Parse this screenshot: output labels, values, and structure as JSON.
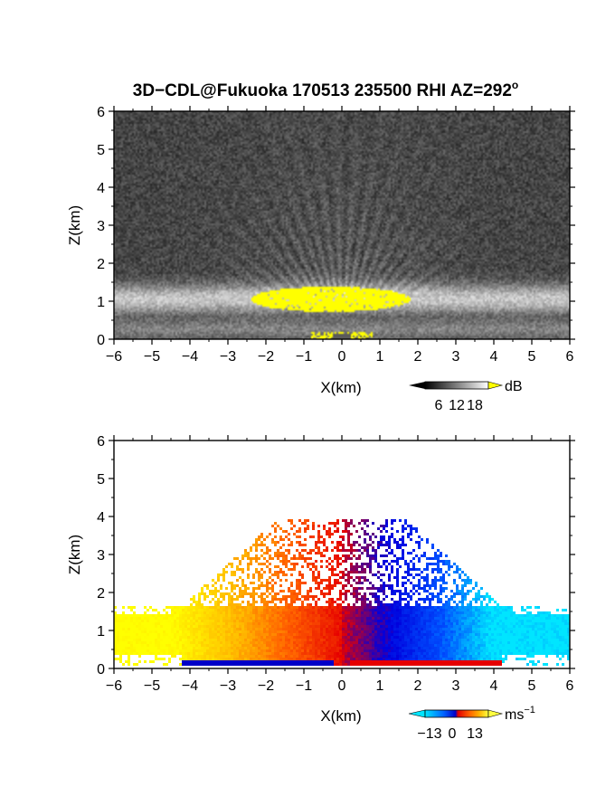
{
  "title": {
    "main": "3D−CDL@Fukuoka 170513 235500 RHI AZ=292",
    "degree_mark": "o"
  },
  "chart_data": [
    {
      "type": "heatmap",
      "quantity": "reflectivity",
      "xlabel": "X(km)",
      "ylabel": "Z(km)",
      "xlim": [
        -6,
        6
      ],
      "ylim": [
        0,
        6
      ],
      "xticks": [
        -6,
        -5,
        -4,
        -3,
        -2,
        -1,
        0,
        1,
        2,
        3,
        4,
        5,
        6
      ],
      "yticks": [
        0,
        1,
        2,
        3,
        4,
        5,
        6
      ],
      "colorbar": {
        "unit": "dB",
        "ticks": [
          "6",
          "12",
          "18"
        ],
        "range": [
          0,
          20
        ],
        "colormap": "grayscale",
        "over_color": "#ffff00"
      }
    },
    {
      "type": "heatmap",
      "quantity": "radial velocity",
      "xlabel": "X(km)",
      "ylabel": "Z(km)",
      "xlim": [
        -6,
        6
      ],
      "ylim": [
        0,
        6
      ],
      "xticks": [
        -6,
        -5,
        -4,
        -3,
        -2,
        -1,
        0,
        1,
        2,
        3,
        4,
        5,
        6
      ],
      "yticks": [
        0,
        1,
        2,
        3,
        4,
        5,
        6
      ],
      "colorbar": {
        "unit": "ms",
        "unit_exponent": "−1",
        "ticks": [
          "−13",
          "0",
          "13"
        ],
        "range": [
          -20,
          20
        ],
        "colormap": "cyan-blue-red-yellow",
        "colors": [
          "#00e5ff",
          "#0050ff",
          "#0000dd",
          "#e60000",
          "#ff6000",
          "#ffc000",
          "#ffff00"
        ]
      }
    }
  ]
}
